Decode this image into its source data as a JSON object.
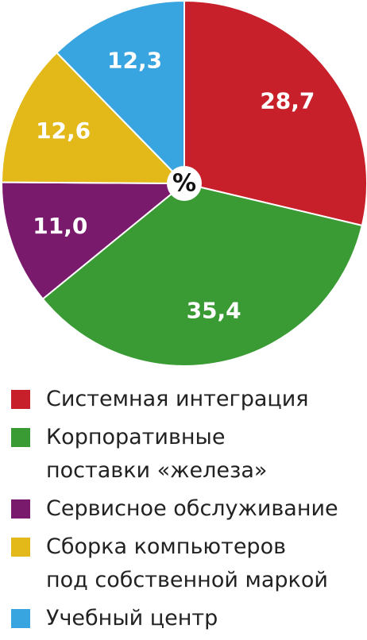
{
  "chart_data": {
    "type": "pie",
    "center_label": "%",
    "categories": [
      "Системная интеграция",
      "Корпоративные\nпоставки «железа»",
      "Сервисное обслуживание",
      "Сборка компьютеров\nпод собственной маркой",
      "Учебный центр"
    ],
    "values": [
      28.7,
      35.4,
      11.0,
      12.6,
      12.3
    ],
    "value_labels": [
      "28,7",
      "35,4",
      "11,0",
      "12,6",
      "12,3"
    ],
    "colors": [
      "#c8202a",
      "#3a9b35",
      "#7a1a6c",
      "#e2b919",
      "#38a4e0"
    ]
  }
}
